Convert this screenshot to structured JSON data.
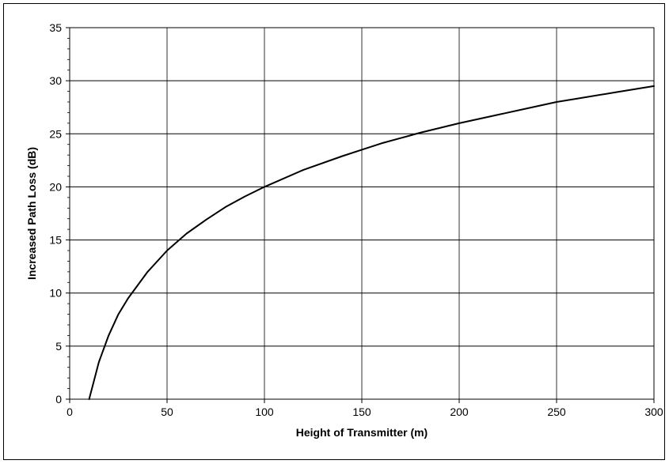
{
  "chart_data": {
    "type": "line",
    "title": "",
    "xlabel": "Height of Transmitter (m)",
    "ylabel": "Increased Path Loss (dB)",
    "xlim": [
      0,
      300
    ],
    "ylim": [
      0,
      35
    ],
    "x_ticks": [
      "0",
      "50",
      "100",
      "150",
      "200",
      "250",
      "300"
    ],
    "y_ticks": [
      "0",
      "5",
      "10",
      "15",
      "20",
      "25",
      "30",
      "35"
    ],
    "grid": true,
    "legend": "none",
    "series": [
      {
        "color": "#000000",
        "x": [
          10,
          15,
          20,
          25,
          30,
          40,
          50,
          60,
          70,
          80,
          90,
          100,
          120,
          140,
          150,
          160,
          180,
          200,
          220,
          240,
          250,
          260,
          280,
          300
        ],
        "y": [
          0,
          3.5,
          6.0,
          8.0,
          9.5,
          12.0,
          14.0,
          15.6,
          16.9,
          18.1,
          19.1,
          20.0,
          21.6,
          22.9,
          23.5,
          24.1,
          25.1,
          26.0,
          26.8,
          27.6,
          28.0,
          28.3,
          28.9,
          29.5
        ]
      }
    ]
  }
}
